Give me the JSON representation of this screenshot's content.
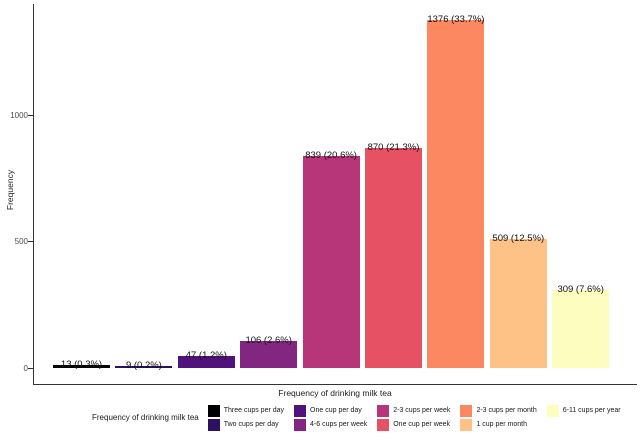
{
  "chart_data": {
    "type": "bar",
    "title": "",
    "xlabel": "Frequency of drinking milk tea",
    "ylabel": "Frequency",
    "ylim": [
      0,
      1450
    ],
    "yticks": [
      0,
      500,
      1000
    ],
    "ytick_labels": [
      "0",
      "500",
      "1000"
    ],
    "grid": false,
    "legend_title": "Frequency of drinking milk tea",
    "legend_position": "bottom",
    "categories": [
      "Three cups per day",
      "Two cups per day",
      "One cup per day",
      "4-6 cups per week",
      "2-3 cups per week",
      "One cup per week",
      "2-3 cups per month",
      "1 cup per month",
      "6-11 cups per year"
    ],
    "values": [
      13,
      9,
      47,
      106,
      839,
      870,
      1376,
      509,
      309
    ],
    "percentages": [
      "0.3%",
      "0.2%",
      "1.2%",
      "2.6%",
      "20.6%",
      "21.3%",
      "33.7%",
      "12.5%",
      "7.6%"
    ],
    "bar_labels": [
      "13 (0.3%)",
      "9 (0.2%)",
      "47 (1.2%)",
      "106 (2.6%)",
      "839 (20.6%)",
      "870 (21.3%)",
      "1376 (33.7%)",
      "509 (12.5%)",
      "309 (7.6%)"
    ],
    "colors": [
      "#000004",
      "#2D1160",
      "#51127C",
      "#822681",
      "#B63679",
      "#E65164",
      "#FB8861",
      "#FEC287",
      "#FCFDBF"
    ],
    "axis_color": "#333333",
    "tick_label_color": "#4d4d4d",
    "bar_label_color": "#111111",
    "background_color": "#ffffff"
  }
}
